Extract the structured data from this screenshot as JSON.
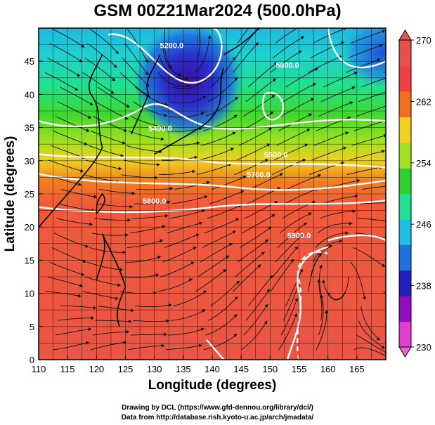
{
  "title": "GSM 00Z21Mar2024 (500.0hPa)",
  "map": {
    "xlabel": "Longitude (degrees)",
    "ylabel": "Latitude  (degrees)",
    "x_ticks": [
      "110",
      "115",
      "120",
      "125",
      "130",
      "135",
      "140",
      "145",
      "150",
      "155",
      "160",
      "165"
    ],
    "y_ticks": [
      "0",
      "5",
      "10",
      "15",
      "20",
      "25",
      "30",
      "35",
      "40",
      "45"
    ],
    "xlim": [
      110,
      170
    ],
    "ylim": [
      0,
      50
    ],
    "contour_labels": [
      {
        "text": "5200.0",
        "lon": 133,
        "lat": 47
      },
      {
        "text": "5400.0",
        "lon": 131,
        "lat": 34.5
      },
      {
        "text": "5500.0",
        "lon": 151,
        "lat": 30.5
      },
      {
        "text": "5700.0",
        "lon": 148,
        "lat": 27.5
      },
      {
        "text": "5800.0",
        "lon": 130,
        "lat": 23.5
      },
      {
        "text": "5900.0",
        "lon": 155,
        "lat": 18.3
      },
      {
        "text": "5600.0",
        "lon": 153,
        "lat": 44
      }
    ]
  },
  "colorbar": {
    "ticks": [
      "230",
      "238",
      "246",
      "254",
      "262",
      "270"
    ],
    "range": [
      230,
      270
    ],
    "colors": [
      "#e040d0",
      "#9010c0",
      "#2020c0",
      "#2070e0",
      "#20c0e0",
      "#20e090",
      "#30d030",
      "#a0e020",
      "#f0d020",
      "#f07020",
      "#f04040",
      "#e85050"
    ]
  },
  "credits": {
    "line1": "Drawing by DCL (https://www.gfd-dennou.org/library/dcl/)",
    "line2": "Data from http://database.rish.kyoto-u.ac.jp/arch/jmadata/"
  }
}
